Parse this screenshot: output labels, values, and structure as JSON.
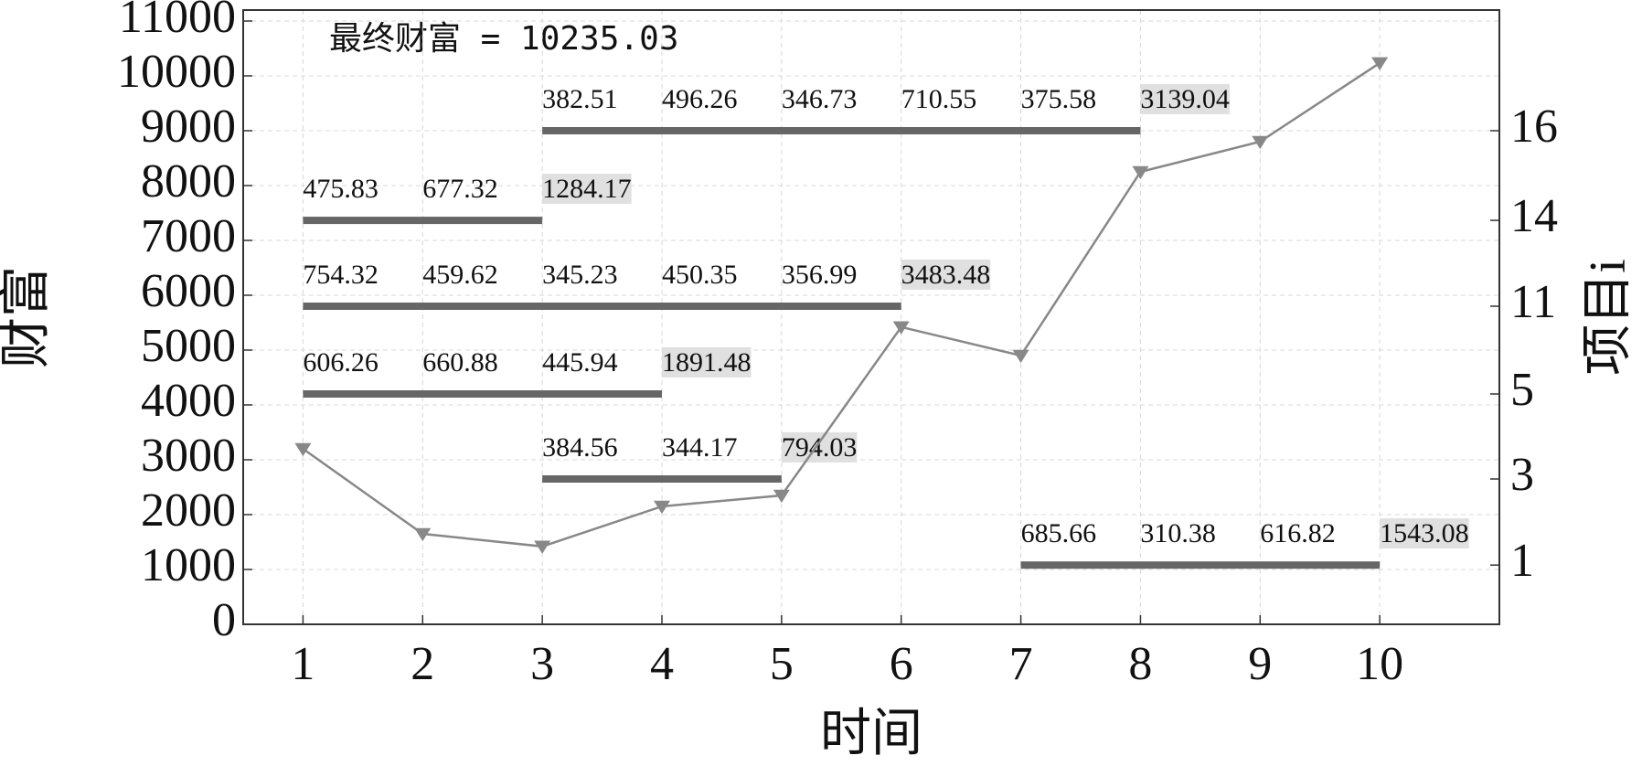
{
  "chart_data": {
    "type": "line",
    "x_label": "时间",
    "y_label": "财富",
    "y2_label": "项目i",
    "annotation": "最终财富 = 10235.03",
    "x": [
      1,
      2,
      3,
      4,
      5,
      6,
      7,
      8,
      9,
      10
    ],
    "series": [
      {
        "name": "财富",
        "color": "#888888",
        "values": [
          3200,
          1650,
          1420,
          2150,
          2350,
          5420,
          4900,
          8250,
          8800,
          10235.03
        ]
      }
    ],
    "xlim": [
      0.5,
      11
    ],
    "xticks": [
      1,
      2,
      3,
      4,
      5,
      6,
      7,
      8,
      9,
      10
    ],
    "ylim": [
      0,
      11200
    ],
    "yticks": [
      0,
      1000,
      2000,
      3000,
      4000,
      5000,
      6000,
      7000,
      8000,
      9000,
      10000,
      11000
    ],
    "grid": true,
    "bar_color": "#666666",
    "projects": [
      {
        "label": "16",
        "level": 9000,
        "start": 3,
        "end": 8,
        "amounts": [
          382.51,
          496.26,
          346.73,
          710.55,
          375.58
        ],
        "total": 3139.04
      },
      {
        "label": "14",
        "level": 7365,
        "start": 1,
        "end": 3,
        "amounts": [
          475.83,
          677.32
        ],
        "total": 1284.17
      },
      {
        "label": "11",
        "level": 5800,
        "start": 1,
        "end": 6,
        "amounts": [
          754.32,
          459.62,
          345.23,
          450.35,
          356.99
        ],
        "total": 3483.48
      },
      {
        "label": "5",
        "level": 4200,
        "start": 1,
        "end": 4,
        "amounts": [
          606.26,
          660.88,
          445.94
        ],
        "total": 1891.48
      },
      {
        "label": "3",
        "level": 2650,
        "start": 3,
        "end": 5,
        "amounts": [
          384.56,
          344.17
        ],
        "total": 794.03
      },
      {
        "label": "1",
        "level": 1080,
        "start": 7,
        "end": 10,
        "amounts": [
          685.66,
          310.38,
          616.82
        ],
        "total": 1543.08
      }
    ]
  }
}
